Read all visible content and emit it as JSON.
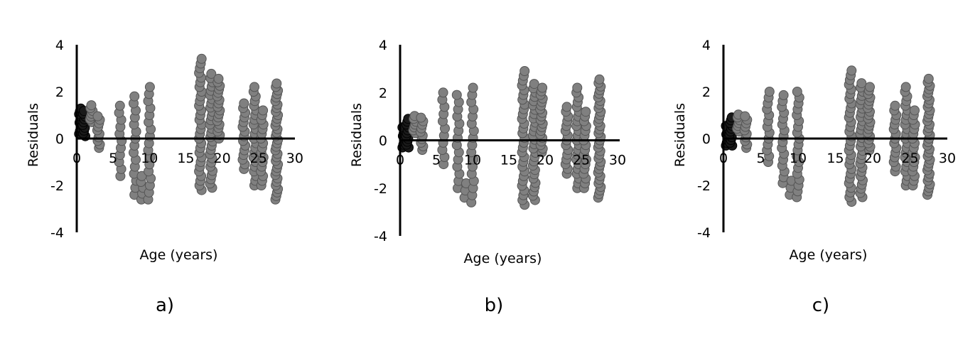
{
  "chart_data": [
    {
      "type": "scatter",
      "panel_label": "a)",
      "xlabel": "Age (years)",
      "ylabel": "Residuals",
      "xlim": [
        0,
        30
      ],
      "ylim": [
        -4,
        4
      ],
      "xticks": [
        "0",
        "5",
        "10",
        "15",
        "20",
        "25",
        "30"
      ],
      "yticks": [
        "-4",
        "-2",
        "0",
        "2",
        "4"
      ],
      "grid": false,
      "legend": "none",
      "marker_color": "#808080",
      "dark_marker_color": "#1a1a1a",
      "columns": [
        {
          "x": 0.5,
          "min": 0.2,
          "max": 1.3,
          "step": 0.12,
          "dark": true
        },
        {
          "x": 1.0,
          "min": 0.1,
          "max": 1.2,
          "step": 0.12,
          "dark": true
        },
        {
          "x": 2.0,
          "min": 0.7,
          "max": 1.5,
          "step": 0.12,
          "dark": false
        },
        {
          "x": 3.0,
          "min": -0.4,
          "max": 1.0,
          "step": 0.15,
          "dark": false
        },
        {
          "x": 6.0,
          "min": -1.6,
          "max": 1.5,
          "step": 0.3,
          "dark": false
        },
        {
          "x": 8.0,
          "min": -2.4,
          "max": 1.8,
          "step": 0.3,
          "dark": false
        },
        {
          "x": 9.0,
          "min": -2.6,
          "max": -1.6,
          "step": 0.25,
          "dark": false
        },
        {
          "x": 10.0,
          "min": -2.6,
          "max": 2.2,
          "step": 0.3,
          "dark": false
        },
        {
          "x": 17.0,
          "min": -2.2,
          "max": 3.4,
          "step": 0.2,
          "dark": false
        },
        {
          "x": 18.5,
          "min": -2.1,
          "max": 2.8,
          "step": 0.18,
          "dark": false
        },
        {
          "x": 19.5,
          "min": 0.0,
          "max": 2.6,
          "step": 0.15,
          "dark": false
        },
        {
          "x": 23.0,
          "min": -1.3,
          "max": 1.5,
          "step": 0.2,
          "dark": false
        },
        {
          "x": 24.5,
          "min": -2.0,
          "max": 2.2,
          "step": 0.2,
          "dark": false
        },
        {
          "x": 25.5,
          "min": -2.0,
          "max": 1.2,
          "step": 0.2,
          "dark": false
        },
        {
          "x": 27.5,
          "min": -2.6,
          "max": 2.4,
          "step": 0.15,
          "dark": false
        }
      ]
    },
    {
      "type": "scatter",
      "panel_label": "b)",
      "xlabel": "Age (years)",
      "ylabel": "Residuals",
      "xlim": [
        0,
        30
      ],
      "ylim": [
        -4,
        4
      ],
      "xticks": [
        "0",
        "5",
        "10",
        "15",
        "20",
        "25",
        "30"
      ],
      "yticks": [
        "-4",
        "-2",
        "0",
        "2",
        "4"
      ],
      "grid": false,
      "legend": "none",
      "marker_color": "#808080",
      "dark_marker_color": "#1a1a1a",
      "columns": [
        {
          "x": 0.5,
          "min": -0.3,
          "max": 0.6,
          "step": 0.12,
          "dark": true
        },
        {
          "x": 1.0,
          "min": -0.3,
          "max": 0.9,
          "step": 0.12,
          "dark": true
        },
        {
          "x": 2.0,
          "min": 0.3,
          "max": 1.1,
          "step": 0.12,
          "dark": false
        },
        {
          "x": 3.0,
          "min": -0.4,
          "max": 1.0,
          "step": 0.15,
          "dark": false
        },
        {
          "x": 6.0,
          "min": -1.0,
          "max": 2.0,
          "step": 0.3,
          "dark": false
        },
        {
          "x": 8.0,
          "min": -2.0,
          "max": 2.1,
          "step": 0.3,
          "dark": false
        },
        {
          "x": 9.0,
          "min": -2.4,
          "max": -1.8,
          "step": 0.3,
          "dark": false
        },
        {
          "x": 10.0,
          "min": -2.6,
          "max": 2.2,
          "step": 0.3,
          "dark": false
        },
        {
          "x": 17.0,
          "min": -2.7,
          "max": 2.9,
          "step": 0.2,
          "dark": false
        },
        {
          "x": 18.5,
          "min": -2.5,
          "max": 2.4,
          "step": 0.18,
          "dark": false
        },
        {
          "x": 19.5,
          "min": -0.5,
          "max": 2.2,
          "step": 0.15,
          "dark": false
        },
        {
          "x": 23.0,
          "min": -1.4,
          "max": 1.4,
          "step": 0.2,
          "dark": false
        },
        {
          "x": 24.5,
          "min": -2.0,
          "max": 2.2,
          "step": 0.2,
          "dark": false
        },
        {
          "x": 25.5,
          "min": -2.0,
          "max": 1.2,
          "step": 0.2,
          "dark": false
        },
        {
          "x": 27.5,
          "min": -2.4,
          "max": 2.6,
          "step": 0.15,
          "dark": false
        }
      ]
    },
    {
      "type": "scatter",
      "panel_label": "c)",
      "xlabel": "Age (years)",
      "ylabel": "Residuals",
      "xlim": [
        0,
        30
      ],
      "ylim": [
        -4,
        4
      ],
      "xticks": [
        "0",
        "5",
        "10",
        "15",
        "20",
        "25",
        "30"
      ],
      "yticks": [
        "-4",
        "-2",
        "0",
        "2",
        "4"
      ],
      "grid": false,
      "legend": "none",
      "marker_color": "#808080",
      "dark_marker_color": "#1a1a1a",
      "columns": [
        {
          "x": 0.5,
          "min": -0.3,
          "max": 0.6,
          "step": 0.12,
          "dark": true
        },
        {
          "x": 1.0,
          "min": -0.3,
          "max": 0.9,
          "step": 0.12,
          "dark": true
        },
        {
          "x": 2.0,
          "min": 0.3,
          "max": 1.1,
          "step": 0.12,
          "dark": false
        },
        {
          "x": 3.0,
          "min": -0.4,
          "max": 1.0,
          "step": 0.15,
          "dark": false
        },
        {
          "x": 6.0,
          "min": -1.0,
          "max": 2.0,
          "step": 0.25,
          "dark": false
        },
        {
          "x": 8.0,
          "min": -1.9,
          "max": 2.0,
          "step": 0.25,
          "dark": false
        },
        {
          "x": 9.0,
          "min": -2.4,
          "max": -1.8,
          "step": 0.3,
          "dark": false
        },
        {
          "x": 10.0,
          "min": -2.5,
          "max": 2.2,
          "step": 0.25,
          "dark": false
        },
        {
          "x": 17.0,
          "min": -2.7,
          "max": 3.0,
          "step": 0.2,
          "dark": false
        },
        {
          "x": 18.5,
          "min": -2.5,
          "max": 2.4,
          "step": 0.18,
          "dark": false
        },
        {
          "x": 19.5,
          "min": -0.5,
          "max": 2.2,
          "step": 0.15,
          "dark": false
        },
        {
          "x": 23.0,
          "min": -1.4,
          "max": 1.4,
          "step": 0.2,
          "dark": false
        },
        {
          "x": 24.5,
          "min": -2.0,
          "max": 2.2,
          "step": 0.2,
          "dark": false
        },
        {
          "x": 25.5,
          "min": -2.0,
          "max": 1.2,
          "step": 0.2,
          "dark": false
        },
        {
          "x": 27.5,
          "min": -2.4,
          "max": 2.6,
          "step": 0.15,
          "dark": false
        }
      ]
    }
  ]
}
